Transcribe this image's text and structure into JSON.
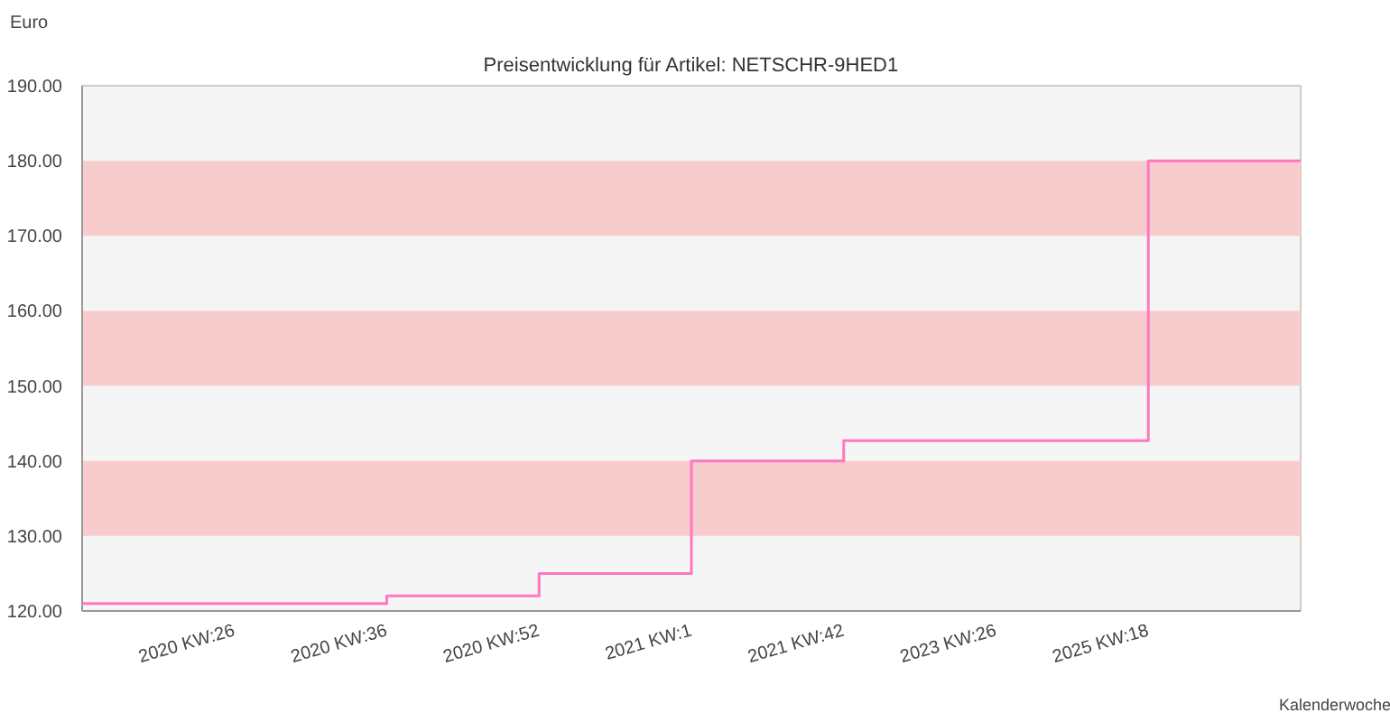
{
  "chart_data": {
    "type": "step",
    "title": "Preisentwicklung für Artikel: NETSCHR-9HED1",
    "xlabel": "Kalenderwoche",
    "ylabel": "Euro",
    "categories": [
      null,
      "2020 KW:26",
      "2020 KW:36",
      "2020 KW:52",
      "2021 KW:1",
      "2021 KW:42",
      "2023 KW:26",
      "2025 KW:18",
      null
    ],
    "series": [
      {
        "color": "#ff77c0",
        "values": [
          121,
          121,
          122,
          125,
          140,
          142.7,
          142.7,
          180,
          180
        ]
      }
    ],
    "ylim": [
      120,
      190
    ],
    "yticks": [
      {
        "value": 120,
        "label": "120.00"
      },
      {
        "value": 130,
        "label": "130.00"
      },
      {
        "value": 140,
        "label": "140.00"
      },
      {
        "value": 150,
        "label": "150.00"
      },
      {
        "value": 160,
        "label": "160.00"
      },
      {
        "value": 170,
        "label": "170.00"
      },
      {
        "value": 180,
        "label": "180.00"
      },
      {
        "value": 190,
        "label": "190.00"
      }
    ],
    "bands": [
      {
        "axis": "y",
        "from": 130,
        "to": 140,
        "color": "#f8cccc"
      },
      {
        "axis": "y",
        "from": 150,
        "to": 160,
        "color": "#f8cccc"
      },
      {
        "axis": "y",
        "from": 170,
        "to": 180,
        "color": "#f8cccc"
      }
    ],
    "grid": false
  }
}
